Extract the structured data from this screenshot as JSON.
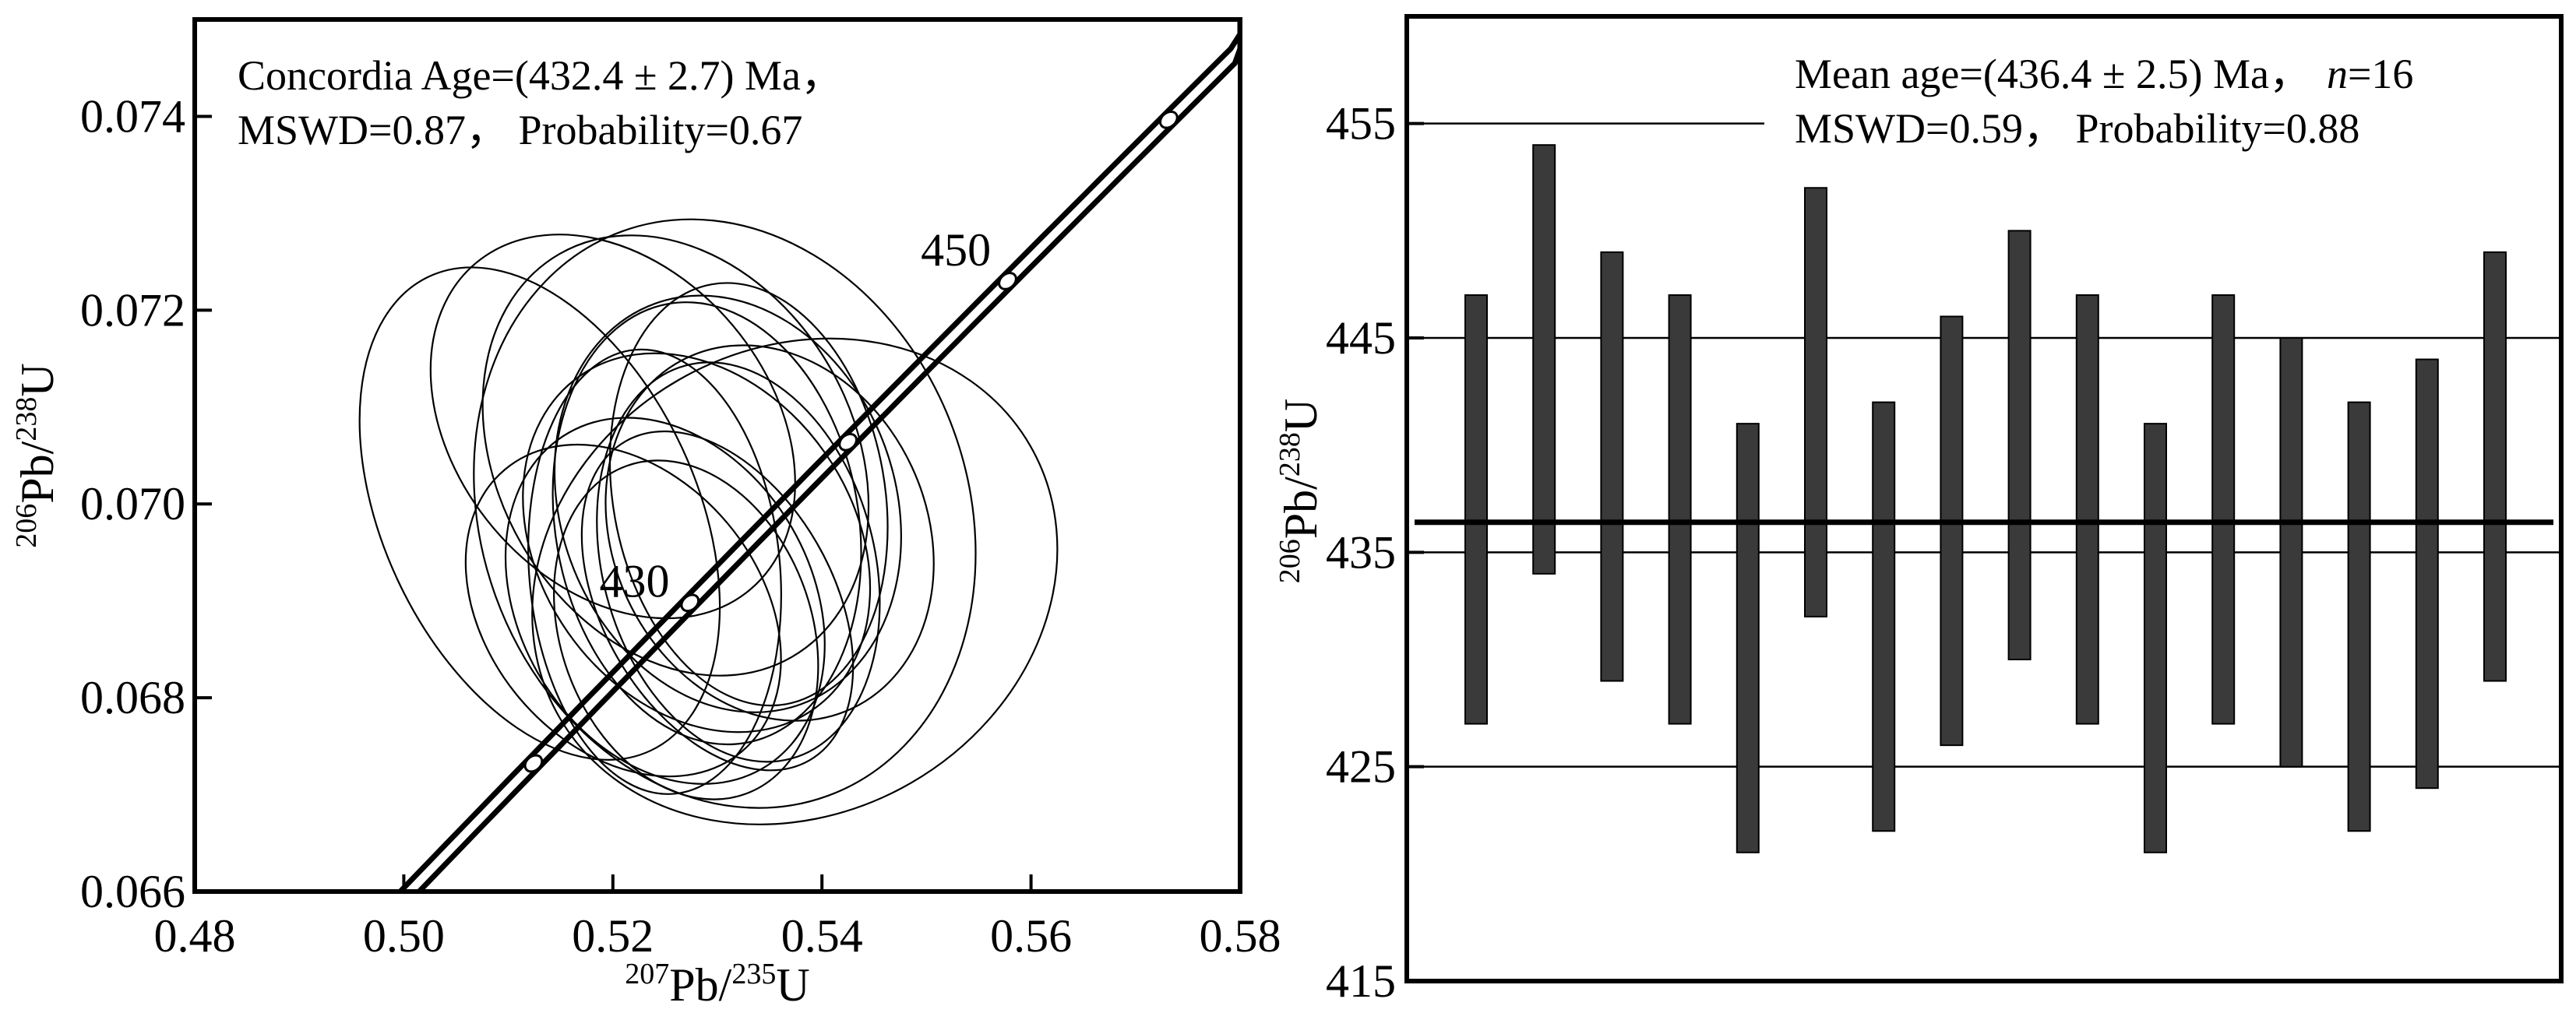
{
  "chart_data": [
    {
      "type": "scatter",
      "subtype": "concordia-ellipses",
      "annotation_lines": [
        "Concordia Age=(432.4 ± 2.7) Ma，",
        "MSWD=0.87，  Probability=0.67"
      ],
      "xlabel": {
        "sup1": "207",
        "mid": "Pb/",
        "sup2": "235",
        "end": "U"
      },
      "ylabel": {
        "sup1": "206",
        "mid": "Pb/",
        "sup2": "238",
        "end": "U"
      },
      "xlim": [
        0.48,
        0.58
      ],
      "ylim": [
        0.066,
        0.075
      ],
      "xticks": [
        "0.48",
        "0.50",
        "0.52",
        "0.54",
        "0.56",
        "0.58"
      ],
      "yticks": [
        "0.066",
        "0.068",
        "0.070",
        "0.072",
        "0.074"
      ],
      "age_markers_ma": [
        420,
        430,
        440,
        450,
        460
      ],
      "age_labels": [
        "430",
        "450"
      ],
      "ellipses": [
        [
          0.513,
          0.0699,
          0.015,
          0.0027,
          -25
        ],
        [
          0.5307,
          0.0699,
          0.0233,
          0.0031,
          -20
        ],
        [
          0.5374,
          0.0692,
          0.026,
          0.0024,
          -30
        ],
        [
          0.526,
          0.0705,
          0.017,
          0.0024,
          -30
        ],
        [
          0.531,
          0.07,
          0.016,
          0.0022,
          -20
        ],
        [
          0.528,
          0.0696,
          0.015,
          0.0021,
          -35
        ],
        [
          0.525,
          0.069,
          0.014,
          0.002,
          -30
        ],
        [
          0.532,
          0.0694,
          0.013,
          0.0021,
          -15
        ],
        [
          0.529,
          0.0698,
          0.0145,
          0.0023,
          -10
        ],
        [
          0.524,
          0.0693,
          0.012,
          0.0023,
          -5
        ],
        [
          0.535,
          0.0697,
          0.015,
          0.002,
          -25
        ],
        [
          0.521,
          0.0689,
          0.013,
          0.0019,
          -40
        ],
        [
          0.527,
          0.0687,
          0.012,
          0.0018,
          -20
        ],
        [
          0.533,
          0.0701,
          0.013,
          0.0022,
          -10
        ],
        [
          0.52,
          0.0708,
          0.015,
          0.0022,
          -40
        ],
        [
          0.53,
          0.069,
          0.011,
          0.0019,
          -30
        ]
      ]
    },
    {
      "type": "bar",
      "subtype": "weighted-mean-error-bars",
      "annotation_lines": [
        "Mean age=(436.4 ± 2.5) Ma，",
        "MSWD=0.59，  Probability=0.88"
      ],
      "n_label": "n",
      "n_value": "=16",
      "ylabel": {
        "sup1": "206",
        "mid": "Pb/",
        "sup2": "238",
        "end": "U"
      },
      "ylim": [
        415,
        460
      ],
      "yticks": [
        "415",
        "425",
        "435",
        "445",
        "455"
      ],
      "mean": 436.4,
      "ranges": [
        [
          427,
          447
        ],
        [
          434,
          454
        ],
        [
          429,
          449
        ],
        [
          427,
          447
        ],
        [
          421,
          441
        ],
        [
          432,
          452
        ],
        [
          422,
          442
        ],
        [
          426,
          446
        ],
        [
          430,
          450
        ],
        [
          427,
          447
        ],
        [
          421,
          441
        ],
        [
          427,
          447
        ],
        [
          425,
          445
        ],
        [
          422,
          442
        ],
        [
          424,
          444
        ],
        [
          429,
          449
        ]
      ],
      "bar_color": "#3a3a3a"
    }
  ]
}
